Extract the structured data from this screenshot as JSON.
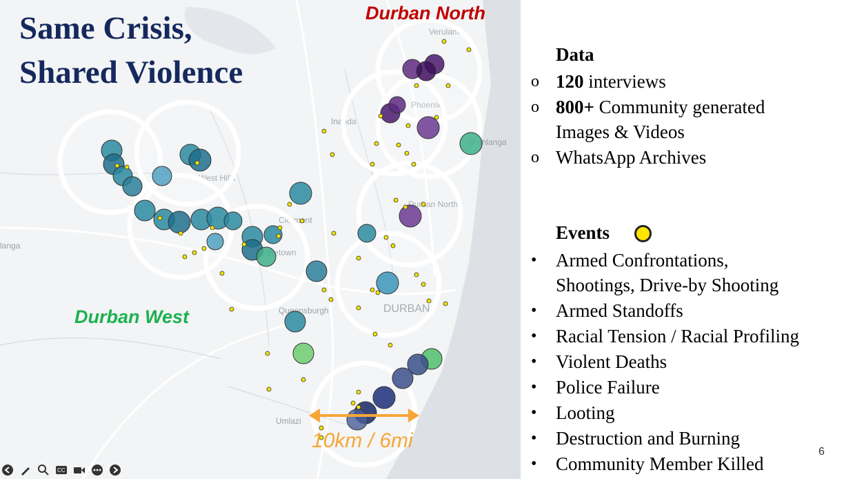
{
  "slide": {
    "title_line1": "Same Crisis,",
    "title_line2": "Shared Violence",
    "page_number": "6"
  },
  "map": {
    "region_north": "Durban North",
    "region_west": "Durban West",
    "scale_label": "10km / 6mi",
    "place_labels": [
      "Verulam",
      "Phoenix",
      "Inanda",
      "Umhlanga",
      "West Hills",
      "Clermont",
      "Pinetown",
      "Queensburgh",
      "DURBAN",
      "Durban North",
      "Umlazi",
      "langa"
    ],
    "colors": {
      "north": "#c00000",
      "west": "#1cb150",
      "scale": "#f6a637"
    }
  },
  "panel": {
    "data_heading": "Data",
    "data_items": [
      {
        "bold": "120",
        "text": " interviews"
      },
      {
        "bold": "800+",
        "text": " Community generated"
      },
      {
        "bold": "",
        "text": "Images & Videos"
      },
      {
        "bold": "",
        "text": "WhatsApp Archives"
      }
    ],
    "events_heading": "Events",
    "events_items": [
      "Armed Confrontations,",
      "Shootings, Drive-by Shooting",
      "Armed Standoffs",
      "Racial Tension / Racial Profiling",
      "Violent Deaths",
      "Police Failure",
      "Looting",
      "Destruction and Burning",
      "Community Member Killed"
    ]
  },
  "toolbar": {
    "icons": [
      "back-icon",
      "pen-icon",
      "zoom-icon",
      "captions-icon",
      "camera-icon",
      "more-icon",
      "forward-icon"
    ]
  }
}
